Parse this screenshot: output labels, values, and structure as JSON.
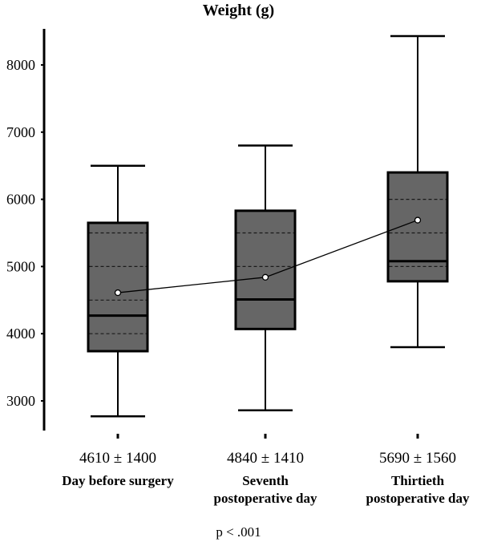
{
  "chart_data": {
    "type": "box",
    "title": "Weight (g)",
    "ylim": [
      2700,
      8500
    ],
    "yticks": [
      3000,
      4000,
      5000,
      6000,
      7000,
      8000
    ],
    "grid": false,
    "categories": [
      "Day before surgery",
      "Seventh\npostoperative day",
      "Thirtieth\npostoperative day"
    ],
    "stat_labels": [
      "4610 ± 1400",
      "4840 ± 1410",
      "5690 ± 1560"
    ],
    "boxes": [
      {
        "min": 2770,
        "q1": 3740,
        "median": 4270,
        "q3": 5650,
        "max": 6500,
        "mean": 4610,
        "dashed": [
          4000,
          4500,
          5000,
          5500
        ]
      },
      {
        "min": 2860,
        "q1": 4070,
        "median": 4510,
        "q3": 5830,
        "max": 6800,
        "mean": 4840,
        "dashed": [
          5000,
          5500
        ]
      },
      {
        "min": 3800,
        "q1": 4780,
        "median": 5080,
        "q3": 6400,
        "max": 8430,
        "mean": 5690,
        "dashed": [
          5000,
          5500,
          6000
        ]
      }
    ],
    "footnote": "p < .001",
    "colors": {
      "box_fill": "#666666",
      "line": "#000000",
      "dashed": "#1a1a1a",
      "marker": "#ffffff"
    }
  }
}
